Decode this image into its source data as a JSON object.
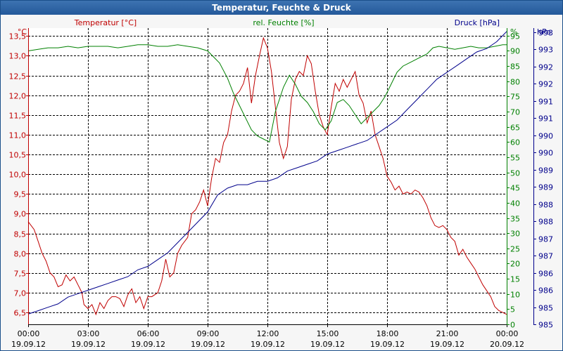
{
  "window": {
    "title": "Temperatur, Feuchte & Druck"
  },
  "chart_data": {
    "type": "line",
    "title": "Temperatur, Feuchte & Druck",
    "grid": true,
    "x_ticks": [
      {
        "time": "00:00",
        "date": "19.09.12",
        "hours": 0
      },
      {
        "time": "03:00",
        "date": "19.09.12",
        "hours": 3
      },
      {
        "time": "06:00",
        "date": "19.09.12",
        "hours": 6
      },
      {
        "time": "09:00",
        "date": "19.09.12",
        "hours": 9
      },
      {
        "time": "12:00",
        "date": "19.09.12",
        "hours": 12
      },
      {
        "time": "15:00",
        "date": "19.09.12",
        "hours": 15
      },
      {
        "time": "18:00",
        "date": "19.09.12",
        "hours": 18
      },
      {
        "time": "21:00",
        "date": "19.09.12",
        "hours": 21
      },
      {
        "time": "00:00",
        "date": "20.09.12",
        "hours": 24
      }
    ],
    "xlim": [
      0,
      24
    ],
    "axes": {
      "temperature": {
        "label": "Temperatur [°C]",
        "unit": "°C",
        "color": "#c00000",
        "ylim": [
          6.2,
          13.7
        ],
        "ticks": [
          "6,5",
          "7,0",
          "7,5",
          "8,0",
          "8,5",
          "9,0",
          "9,5",
          "10,0",
          "10,5",
          "11,0",
          "11,5",
          "12,0",
          "12,5",
          "13,0",
          "13,5"
        ],
        "tick_values": [
          6.5,
          7.0,
          7.5,
          8.0,
          8.5,
          9.0,
          9.5,
          10.0,
          10.5,
          11.0,
          11.5,
          12.0,
          12.5,
          13.0,
          13.5
        ]
      },
      "humidity": {
        "label": "rel. Feuchte [%]",
        "unit": "%",
        "color": "#008000",
        "ylim": [
          0,
          97.5
        ],
        "ticks": [
          "0",
          "5",
          "10",
          "15",
          "20",
          "25",
          "30",
          "35",
          "40",
          "45",
          "50",
          "55",
          "60",
          "65",
          "70",
          "75",
          "80",
          "85",
          "90",
          "95"
        ],
        "tick_values": [
          0,
          5,
          10,
          15,
          20,
          25,
          30,
          35,
          40,
          45,
          50,
          55,
          60,
          65,
          70,
          75,
          80,
          85,
          90,
          95
        ]
      },
      "pressure": {
        "label": "Druck [hPa]",
        "unit": "hPa",
        "color": "#00008b",
        "ylim": [
          984.6,
          993.3
        ],
        "ticks": [
          "985",
          "985",
          "986",
          "986",
          "987",
          "987",
          "988",
          "988",
          "989",
          "989",
          "990",
          "990",
          "991",
          "991",
          "992",
          "992",
          "993",
          "993"
        ]
      }
    },
    "series": [
      {
        "name": "Temperatur",
        "axis": "temperature",
        "color": "#c00000",
        "points": [
          [
            0,
            8.8
          ],
          [
            0.3,
            8.6
          ],
          [
            0.5,
            8.3
          ],
          [
            0.7,
            8.0
          ],
          [
            0.9,
            7.8
          ],
          [
            1.1,
            7.5
          ],
          [
            1.3,
            7.4
          ],
          [
            1.5,
            7.15
          ],
          [
            1.7,
            7.2
          ],
          [
            1.9,
            7.45
          ],
          [
            2.1,
            7.3
          ],
          [
            2.3,
            7.4
          ],
          [
            2.5,
            7.2
          ],
          [
            2.7,
            7.0
          ],
          [
            2.8,
            6.7
          ],
          [
            3.0,
            6.6
          ],
          [
            3.2,
            6.7
          ],
          [
            3.4,
            6.45
          ],
          [
            3.6,
            6.75
          ],
          [
            3.8,
            6.6
          ],
          [
            4.0,
            6.8
          ],
          [
            4.2,
            6.9
          ],
          [
            4.4,
            6.9
          ],
          [
            4.6,
            6.85
          ],
          [
            4.8,
            6.65
          ],
          [
            5.0,
            6.95
          ],
          [
            5.2,
            7.1
          ],
          [
            5.4,
            6.75
          ],
          [
            5.6,
            6.9
          ],
          [
            5.8,
            6.6
          ],
          [
            6.0,
            6.9
          ],
          [
            6.2,
            6.9
          ],
          [
            6.5,
            7.0
          ],
          [
            6.7,
            7.3
          ],
          [
            6.9,
            7.85
          ],
          [
            7.1,
            7.4
          ],
          [
            7.3,
            7.5
          ],
          [
            7.5,
            8.0
          ],
          [
            7.7,
            8.2
          ],
          [
            8.0,
            8.4
          ],
          [
            8.2,
            9.0
          ],
          [
            8.4,
            9.1
          ],
          [
            8.6,
            9.3
          ],
          [
            8.8,
            9.6
          ],
          [
            9.0,
            9.2
          ],
          [
            9.2,
            9.9
          ],
          [
            9.4,
            10.4
          ],
          [
            9.6,
            10.3
          ],
          [
            9.8,
            10.8
          ],
          [
            10.0,
            11.0
          ],
          [
            10.2,
            11.6
          ],
          [
            10.4,
            12.0
          ],
          [
            10.6,
            12.1
          ],
          [
            10.8,
            12.3
          ],
          [
            11.0,
            12.7
          ],
          [
            11.2,
            11.8
          ],
          [
            11.4,
            12.5
          ],
          [
            11.6,
            13.0
          ],
          [
            11.8,
            13.45
          ],
          [
            12.0,
            13.2
          ],
          [
            12.2,
            12.6
          ],
          [
            12.4,
            11.7
          ],
          [
            12.6,
            10.8
          ],
          [
            12.8,
            10.4
          ],
          [
            13.0,
            10.7
          ],
          [
            13.2,
            11.9
          ],
          [
            13.4,
            12.4
          ],
          [
            13.6,
            12.6
          ],
          [
            13.8,
            12.5
          ],
          [
            14.0,
            13.0
          ],
          [
            14.2,
            12.8
          ],
          [
            14.4,
            12.1
          ],
          [
            14.6,
            11.5
          ],
          [
            14.8,
            11.2
          ],
          [
            15.0,
            11.0
          ],
          [
            15.2,
            11.7
          ],
          [
            15.4,
            12.3
          ],
          [
            15.6,
            12.1
          ],
          [
            15.8,
            12.4
          ],
          [
            16.0,
            12.2
          ],
          [
            16.2,
            12.4
          ],
          [
            16.4,
            12.6
          ],
          [
            16.6,
            12.0
          ],
          [
            16.8,
            11.8
          ],
          [
            17.0,
            11.3
          ],
          [
            17.2,
            11.6
          ],
          [
            17.4,
            11.0
          ],
          [
            17.6,
            10.7
          ],
          [
            17.8,
            10.4
          ],
          [
            18.0,
            9.95
          ],
          [
            18.2,
            9.8
          ],
          [
            18.4,
            9.6
          ],
          [
            18.6,
            9.7
          ],
          [
            18.8,
            9.5
          ],
          [
            19.0,
            9.55
          ],
          [
            19.2,
            9.5
          ],
          [
            19.4,
            9.6
          ],
          [
            19.6,
            9.55
          ],
          [
            19.8,
            9.4
          ],
          [
            20.0,
            9.2
          ],
          [
            20.2,
            8.9
          ],
          [
            20.4,
            8.7
          ],
          [
            20.6,
            8.65
          ],
          [
            20.8,
            8.7
          ],
          [
            21.0,
            8.6
          ],
          [
            21.2,
            8.4
          ],
          [
            21.4,
            8.3
          ],
          [
            21.6,
            7.95
          ],
          [
            21.8,
            8.1
          ],
          [
            22.0,
            7.9
          ],
          [
            22.2,
            7.75
          ],
          [
            22.4,
            7.6
          ],
          [
            22.6,
            7.4
          ],
          [
            22.8,
            7.2
          ],
          [
            23.0,
            7.05
          ],
          [
            23.2,
            6.9
          ],
          [
            23.4,
            6.65
          ],
          [
            23.6,
            6.55
          ],
          [
            23.8,
            6.5
          ],
          [
            24.0,
            6.45
          ]
        ]
      },
      {
        "name": "rel. Feuchte",
        "axis": "humidity",
        "color": "#008000",
        "points": [
          [
            0,
            90
          ],
          [
            0.5,
            90.5
          ],
          [
            1.0,
            91
          ],
          [
            1.5,
            91
          ],
          [
            2.0,
            91.5
          ],
          [
            2.5,
            91
          ],
          [
            3.0,
            91.5
          ],
          [
            3.5,
            91.5
          ],
          [
            4.0,
            91.5
          ],
          [
            4.5,
            91
          ],
          [
            5.0,
            91.5
          ],
          [
            5.5,
            92
          ],
          [
            6.0,
            92
          ],
          [
            6.5,
            91.5
          ],
          [
            7.0,
            91.5
          ],
          [
            7.5,
            92
          ],
          [
            8.0,
            91.5
          ],
          [
            8.5,
            91
          ],
          [
            9.0,
            90
          ],
          [
            9.3,
            88
          ],
          [
            9.6,
            86
          ],
          [
            10.0,
            81
          ],
          [
            10.3,
            76
          ],
          [
            10.6,
            72
          ],
          [
            10.9,
            68
          ],
          [
            11.2,
            64
          ],
          [
            11.5,
            62
          ],
          [
            11.8,
            61
          ],
          [
            12.1,
            60
          ],
          [
            12.4,
            70
          ],
          [
            12.8,
            78
          ],
          [
            13.1,
            82
          ],
          [
            13.4,
            79
          ],
          [
            13.7,
            75
          ],
          [
            14.0,
            73
          ],
          [
            14.3,
            70
          ],
          [
            14.6,
            66
          ],
          [
            14.9,
            64
          ],
          [
            15.2,
            67
          ],
          [
            15.5,
            73
          ],
          [
            15.8,
            74
          ],
          [
            16.1,
            72
          ],
          [
            16.4,
            69
          ],
          [
            16.7,
            66
          ],
          [
            17.0,
            68
          ],
          [
            17.3,
            70
          ],
          [
            17.6,
            72
          ],
          [
            17.9,
            75
          ],
          [
            18.2,
            79
          ],
          [
            18.5,
            83
          ],
          [
            18.8,
            85
          ],
          [
            19.1,
            86
          ],
          [
            19.4,
            87
          ],
          [
            19.7,
            88
          ],
          [
            20.0,
            89
          ],
          [
            20.3,
            91
          ],
          [
            20.6,
            91.5
          ],
          [
            21.0,
            91
          ],
          [
            21.4,
            90.5
          ],
          [
            21.8,
            91
          ],
          [
            22.2,
            91.5
          ],
          [
            22.6,
            91
          ],
          [
            23.0,
            91
          ],
          [
            23.4,
            91.5
          ],
          [
            23.8,
            92
          ],
          [
            24.0,
            92
          ]
        ]
      },
      {
        "name": "Druck",
        "axis": "pressure",
        "color": "#00008b",
        "points": [
          [
            0,
            984.9
          ],
          [
            0.5,
            985.0
          ],
          [
            1.0,
            985.1
          ],
          [
            1.5,
            985.2
          ],
          [
            2.0,
            985.4
          ],
          [
            2.5,
            985.5
          ],
          [
            3.0,
            985.6
          ],
          [
            3.5,
            985.7
          ],
          [
            4.0,
            985.8
          ],
          [
            4.5,
            985.9
          ],
          [
            5.0,
            986.0
          ],
          [
            5.5,
            986.2
          ],
          [
            6.0,
            986.3
          ],
          [
            6.5,
            986.5
          ],
          [
            7.0,
            986.7
          ],
          [
            7.5,
            987.0
          ],
          [
            8.0,
            987.3
          ],
          [
            8.5,
            987.6
          ],
          [
            9.0,
            987.9
          ],
          [
            9.5,
            988.4
          ],
          [
            10.0,
            988.6
          ],
          [
            10.5,
            988.7
          ],
          [
            11.0,
            988.7
          ],
          [
            11.5,
            988.8
          ],
          [
            12.0,
            988.8
          ],
          [
            12.5,
            988.9
          ],
          [
            13.0,
            989.1
          ],
          [
            13.5,
            989.2
          ],
          [
            14.0,
            989.3
          ],
          [
            14.5,
            989.4
          ],
          [
            15.0,
            989.6
          ],
          [
            15.5,
            989.7
          ],
          [
            16.0,
            989.8
          ],
          [
            16.5,
            989.9
          ],
          [
            17.0,
            990.0
          ],
          [
            17.5,
            990.2
          ],
          [
            18.0,
            990.4
          ],
          [
            18.5,
            990.6
          ],
          [
            19.0,
            990.9
          ],
          [
            19.5,
            991.2
          ],
          [
            20.0,
            991.5
          ],
          [
            20.5,
            991.8
          ],
          [
            21.0,
            992.0
          ],
          [
            21.5,
            992.2
          ],
          [
            22.0,
            992.4
          ],
          [
            22.5,
            992.6
          ],
          [
            23.0,
            992.7
          ],
          [
            23.5,
            992.9
          ],
          [
            24.0,
            993.2
          ]
        ]
      }
    ]
  }
}
